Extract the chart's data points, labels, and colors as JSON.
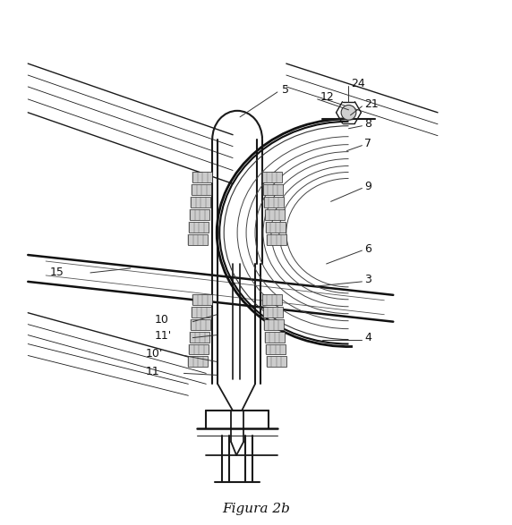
{
  "title": "Figura 2b",
  "bg_color": "#ffffff",
  "line_color": "#1a1a1a",
  "label_color": "#111111",
  "fig_width": 5.72,
  "fig_height": 5.87,
  "dpi": 100
}
